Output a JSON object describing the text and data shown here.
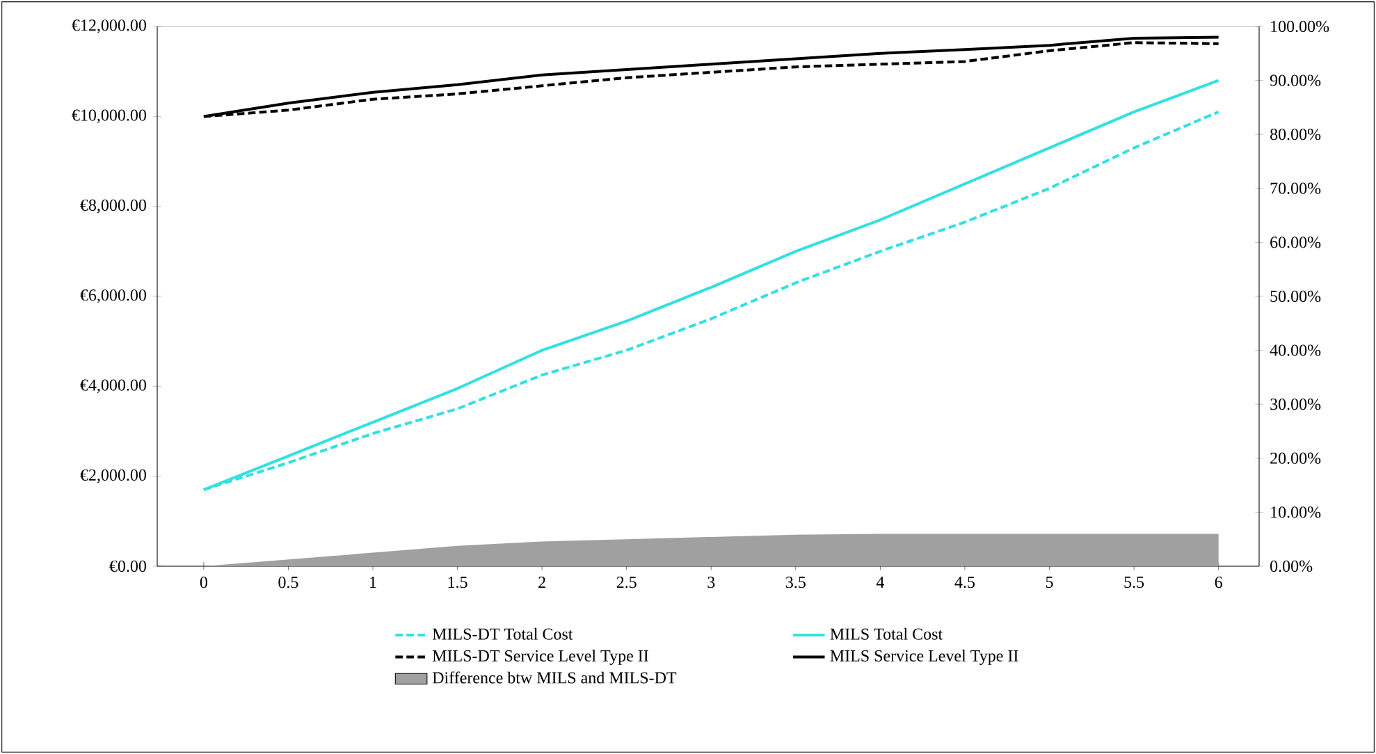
{
  "chart_data": {
    "type": "line",
    "categories": [
      "0",
      "0.5",
      "1",
      "1.5",
      "2",
      "2.5",
      "3",
      "3.5",
      "4",
      "4.5",
      "5",
      "5.5",
      "6"
    ],
    "series": [
      {
        "name": "MILS-DT Total Cost",
        "color": "#33e0e0",
        "line_style": "dashed",
        "values": [
          1700,
          2300,
          2950,
          3500,
          4250,
          4800,
          5500,
          6300,
          7000,
          7650,
          8400,
          9300,
          10100
        ]
      },
      {
        "name": "MILS Total Cost",
        "color": "#33e0e0",
        "line_style": "solid",
        "values": [
          1700,
          2450,
          3200,
          3950,
          4800,
          5450,
          6200,
          7000,
          7700,
          8500,
          9300,
          10100,
          10800
        ]
      },
      {
        "name": "MILS-DT Service Level Type II",
        "color": "#000000",
        "line_style": "dashed",
        "axis": "y2",
        "values": [
          83.3,
          84.5,
          86.5,
          87.5,
          89,
          90.5,
          91.5,
          92.5,
          93,
          93.5,
          95.5,
          97,
          96.8
        ]
      },
      {
        "name": "MILS Service Level Type II",
        "color": "#000000",
        "line_style": "solid",
        "axis": "y2",
        "values": [
          83.3,
          85.8,
          87.8,
          89.2,
          91,
          92,
          93,
          94,
          95,
          95.7,
          96.5,
          97.8,
          98
        ]
      },
      {
        "name": "Difference btw MILS and MILS-DT",
        "color": "#a0a0a0",
        "type": "area",
        "values": [
          0,
          150,
          300,
          450,
          550,
          600,
          650,
          700,
          720,
          720,
          720,
          720,
          720
        ]
      }
    ],
    "ylim": [
      0,
      12000
    ],
    "yticks": [
      {
        "value": 0,
        "label": "€0.00"
      },
      {
        "value": 2000,
        "label": "€2,000.00"
      },
      {
        "value": 4000,
        "label": "€4,000.00"
      },
      {
        "value": 6000,
        "label": "€6,000.00"
      },
      {
        "value": 8000,
        "label": "€8,000.00"
      },
      {
        "value": 10000,
        "label": "€10,000.00"
      },
      {
        "value": 12000,
        "label": "€12,000.00"
      }
    ],
    "y2lim": [
      0,
      100
    ],
    "y2ticks": [
      {
        "value": 0,
        "label": "0.00%"
      },
      {
        "value": 10,
        "label": "10.00%"
      },
      {
        "value": 20,
        "label": "20.00%"
      },
      {
        "value": 30,
        "label": "30.00%"
      },
      {
        "value": 40,
        "label": "40.00%"
      },
      {
        "value": 50,
        "label": "50.00%"
      },
      {
        "value": 60,
        "label": "60.00%"
      },
      {
        "value": 70,
        "label": "70.00%"
      },
      {
        "value": 80,
        "label": "80.00%"
      },
      {
        "value": 90,
        "label": "90.00%"
      },
      {
        "value": 100,
        "label": "100.00%"
      }
    ],
    "grid": false,
    "legend": "bottom"
  }
}
